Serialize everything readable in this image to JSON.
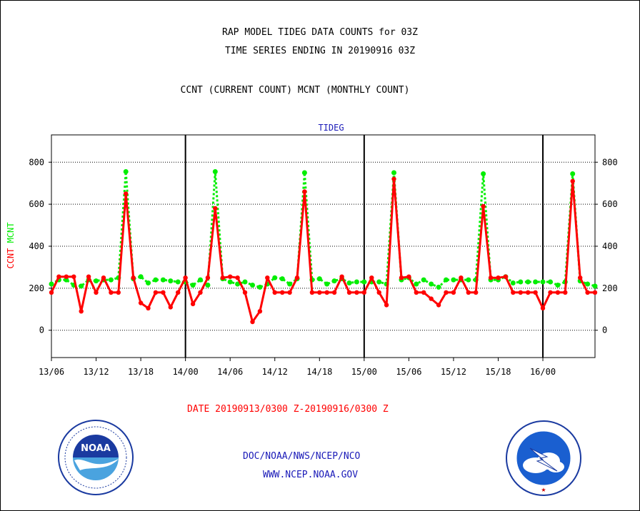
{
  "header": {
    "line1": "RAP MODEL TIDEG DATA COUNTS for 03Z",
    "line2": "TIME SERIES ENDING IN 20190916 03Z",
    "line3": "CCNT (CURRENT COUNT) MCNT (MONTHLY COUNT)"
  },
  "footer": {
    "date_range": "DATE 20190913/0300 Z-20190916/0300 Z",
    "org": "DOC/NOAA/NWS/NCEP/NCO",
    "url": "WWW.NCEP.NOAA.GOV"
  },
  "colors": {
    "ccnt": "#ff0000",
    "mcnt": "#00ee00",
    "axis_text": "#000000",
    "link": "#1a1ab8"
  },
  "logos": {
    "noaa_icon": "noaa-logo-icon",
    "noaa_text": "NOAA",
    "nws_icon": "nws-logo-icon"
  },
  "chart_data": {
    "type": "line",
    "title": "TIDEG",
    "ylabel_parts": [
      "CCNT",
      "MCNT"
    ],
    "ylim": [
      -130,
      930
    ],
    "yticks": [
      0,
      200,
      400,
      600,
      800
    ],
    "grid": "horizontal dotted",
    "x_tick_labels": [
      "13/06",
      "13/12",
      "13/18",
      "14/00",
      "14/06",
      "14/12",
      "14/18",
      "15/00",
      "15/06",
      "15/12",
      "15/18",
      "16/00"
    ],
    "x_tick_hours": [
      3,
      9,
      15,
      21,
      27,
      33,
      39,
      45,
      51,
      57,
      63,
      69
    ],
    "day_boundaries_hours": [
      21,
      45,
      69
    ],
    "x_start": "20190913/0300",
    "x_end": "20190916/0300",
    "series": [
      {
        "name": "CCNT",
        "color": "#ff0000",
        "values": [
          180,
          255,
          255,
          255,
          90,
          255,
          180,
          250,
          180,
          180,
          650,
          250,
          130,
          105,
          180,
          180,
          110,
          180,
          250,
          125,
          180,
          250,
          580,
          250,
          255,
          250,
          180,
          40,
          90,
          250,
          180,
          180,
          180,
          250,
          660,
          180,
          180,
          180,
          180,
          255,
          180,
          180,
          180,
          250,
          180,
          120,
          720,
          250,
          255,
          180,
          180,
          150,
          120,
          180,
          180,
          250,
          180,
          180,
          590,
          250,
          250,
          255,
          180,
          180,
          180,
          180,
          105,
          180,
          180,
          180,
          710,
          250,
          180,
          180
        ]
      },
      {
        "name": "MCNT",
        "color": "#00ee00",
        "values": [
          220,
          240,
          240,
          215,
          210,
          240,
          235,
          240,
          240,
          250,
          755,
          245,
          255,
          225,
          240,
          240,
          235,
          230,
          230,
          215,
          240,
          215,
          755,
          245,
          230,
          220,
          230,
          215,
          205,
          220,
          250,
          245,
          220,
          245,
          750,
          240,
          245,
          220,
          235,
          245,
          225,
          230,
          230,
          230,
          230,
          220,
          750,
          240,
          250,
          220,
          240,
          220,
          205,
          240,
          240,
          240,
          240,
          240,
          745,
          240,
          240,
          255,
          225,
          230,
          230,
          230,
          230,
          230,
          215,
          230,
          745,
          235,
          220,
          210
        ]
      }
    ]
  }
}
